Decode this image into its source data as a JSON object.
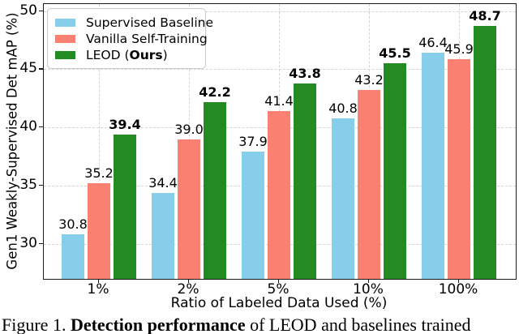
{
  "figure": {
    "caption_prefix": "Figure 1. ",
    "caption_bold": "Detection performance",
    "caption_suffix": " of LEOD and baselines trained"
  },
  "chart_data": {
    "type": "bar",
    "title": "",
    "xlabel": "Ratio of Labeled Data Used (%)",
    "ylabel": "Gen1 Weakly-Supervised Det mAP (%)",
    "categories": [
      "1%",
      "2%",
      "5%",
      "10%",
      "100%"
    ],
    "series": [
      {
        "name": "Supervised Baseline",
        "color": "#87CEEB",
        "values": [
          30.8,
          34.4,
          37.9,
          40.8,
          46.4
        ],
        "bold_labels": false
      },
      {
        "name": "Vanilla Self-Training",
        "color": "#FA8072",
        "values": [
          35.2,
          39.0,
          41.4,
          43.2,
          45.9
        ],
        "bold_labels": false
      },
      {
        "name": "LEOD (Ours)",
        "color": "#228B22",
        "values": [
          39.4,
          42.2,
          43.8,
          45.5,
          48.7
        ],
        "bold_labels": true
      }
    ],
    "legend": [
      {
        "pre": "Supervised Baseline",
        "bold": "",
        "post": ""
      },
      {
        "pre": "Vanilla Self-Training",
        "bold": "",
        "post": ""
      },
      {
        "pre": "LEOD (",
        "bold": "Ours",
        "post": ")"
      }
    ],
    "legend_position": "upper left",
    "grid": true,
    "ylim": [
      27,
      50.6
    ],
    "yticks": [
      30,
      35,
      40,
      45,
      50
    ],
    "value_label_decimals": 1
  }
}
